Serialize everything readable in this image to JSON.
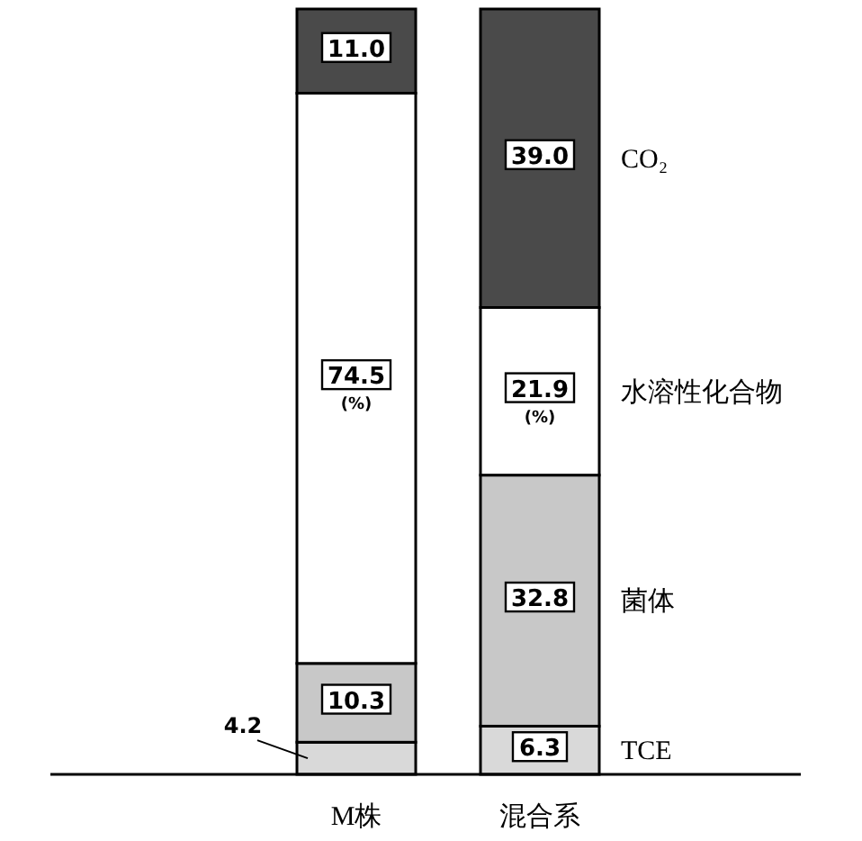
{
  "chart_data": {
    "type": "bar",
    "stacked": true,
    "legend": "right",
    "categories": [
      "M株",
      "混合系"
    ],
    "series": [
      {
        "name": "TCE",
        "color": "#d9d9d9",
        "values": [
          4.2,
          6.3
        ],
        "value_labels": [
          "4.2",
          "6.3"
        ]
      },
      {
        "name": "菌体",
        "color": "#c8c8c8",
        "values": [
          10.3,
          32.8
        ],
        "value_labels": [
          "10.3",
          "32.8"
        ]
      },
      {
        "name": "水溶性化合物",
        "color": "#ffffff",
        "values": [
          74.5,
          21.9
        ],
        "value_labels": [
          "74.5\n(%)",
          "21.9\n(%)"
        ]
      },
      {
        "name": "CO₂",
        "color": "#4a4a4a",
        "values": [
          11.0,
          39.0
        ],
        "value_labels": [
          "11.0",
          "39.0"
        ]
      }
    ]
  }
}
